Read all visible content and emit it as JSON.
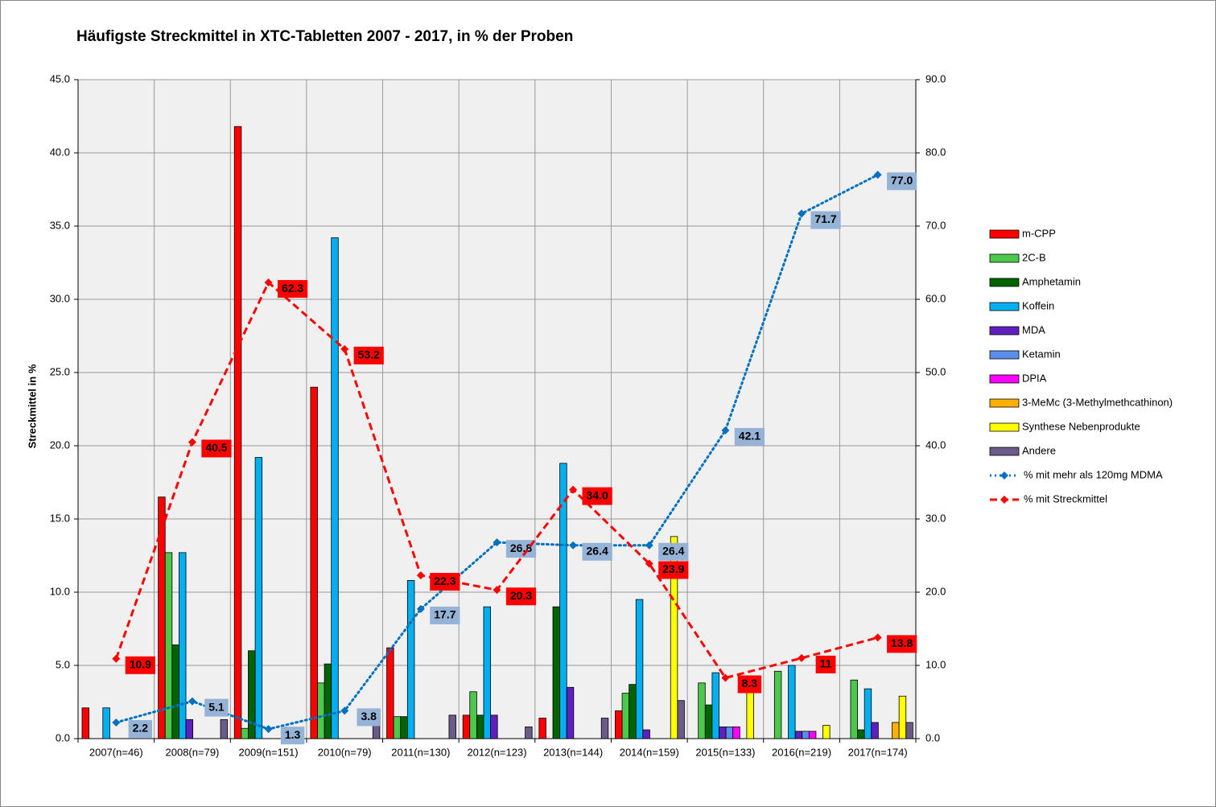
{
  "chart_data": {
    "type": "bar",
    "title": "Häufigste Streckmittel in XTC-Tabletten 2007 - 2017, in % der Proben",
    "y_label": "Streckmittel in %",
    "categories": [
      "2007(n=46)",
      "2008(n=79)",
      "2009(n=151)",
      "2010(n=79)",
      "2011(n=130)",
      "2012(n=123)",
      "2013(n=144)",
      "2014(n=159)",
      "2015(n=133)",
      "2016(n=219)",
      "2017(n=174)"
    ],
    "ylim": [
      0,
      45
    ],
    "yticks": [
      {
        "value": 0,
        "label": "0.0"
      },
      {
        "value": 5,
        "label": "5.0"
      },
      {
        "value": 10,
        "label": "10.0"
      },
      {
        "value": 15,
        "label": "15.0"
      },
      {
        "value": 20,
        "label": "20.0"
      },
      {
        "value": 25,
        "label": "25.0"
      },
      {
        "value": 30,
        "label": "30.0"
      },
      {
        "value": 35,
        "label": "35.0"
      },
      {
        "value": 40,
        "label": "40.0"
      },
      {
        "value": 45,
        "label": "45.0"
      }
    ],
    "y2lim": [
      0,
      90
    ],
    "y2ticks": [
      {
        "value": 0,
        "label": "0.0"
      },
      {
        "value": 10,
        "label": "10.0"
      },
      {
        "value": 20,
        "label": "20.0"
      },
      {
        "value": 30,
        "label": "30.0"
      },
      {
        "value": 40,
        "label": "40.0"
      },
      {
        "value": 50,
        "label": "50.0"
      },
      {
        "value": 60,
        "label": "60.0"
      },
      {
        "value": 70,
        "label": "70.0"
      },
      {
        "value": 80,
        "label": "80.0"
      },
      {
        "value": 90,
        "label": "90.0"
      }
    ],
    "grid": true,
    "legend": "right",
    "series": [
      {
        "name": "m-CPP",
        "color": "#ff0000",
        "values": [
          2.1,
          16.5,
          41.8,
          24.0,
          6.2,
          1.6,
          1.4,
          1.9,
          null,
          null,
          null
        ]
      },
      {
        "name": "2C-B",
        "color": "#4cc84c",
        "values": [
          null,
          12.7,
          0.7,
          3.8,
          1.5,
          3.2,
          null,
          3.1,
          3.8,
          4.6,
          4.0
        ]
      },
      {
        "name": "Amphetamin",
        "color": "#006400",
        "values": [
          null,
          6.4,
          6.0,
          5.1,
          1.5,
          1.6,
          9.0,
          3.7,
          2.3,
          null,
          0.6
        ]
      },
      {
        "name": "Koffein",
        "color": "#00b0f0",
        "values": [
          2.1,
          12.7,
          19.2,
          34.2,
          10.8,
          9.0,
          18.8,
          9.5,
          4.5,
          5.0,
          3.4
        ]
      },
      {
        "name": "MDA",
        "color": "#6020c0",
        "values": [
          null,
          1.3,
          null,
          null,
          null,
          1.6,
          3.5,
          0.6,
          0.8,
          0.5,
          1.1
        ]
      },
      {
        "name": "Ketamin",
        "color": "#5a8ee8",
        "values": [
          null,
          null,
          null,
          null,
          null,
          null,
          null,
          null,
          0.8,
          0.5,
          null
        ]
      },
      {
        "name": "DPIA",
        "color": "#ff00ff",
        "values": [
          null,
          null,
          null,
          null,
          null,
          null,
          null,
          null,
          0.8,
          0.5,
          null
        ]
      },
      {
        "name": "3-MeMc (3-Methylmethcathinon)",
        "color": "#ffb000",
        "values": [
          null,
          null,
          null,
          null,
          null,
          null,
          null,
          null,
          null,
          null,
          1.1
        ]
      },
      {
        "name": "Synthese Nebenprodukte",
        "color": "#ffff00",
        "values": [
          null,
          null,
          null,
          null,
          null,
          null,
          null,
          13.8,
          3.8,
          0.9,
          2.9
        ]
      },
      {
        "name": "Andere",
        "color": "#6b5b8a",
        "values": [
          null,
          1.3,
          null,
          1.3,
          1.6,
          0.8,
          1.4,
          2.6,
          null,
          null,
          1.1
        ]
      },
      {
        "name": "% mit mehr als 120mg MDMA",
        "color": "#0070c0",
        "type": "line",
        "style": "dotted",
        "axis": "y2",
        "label_fill": "#95b3d7",
        "values": [
          2.2,
          5.1,
          1.3,
          3.8,
          17.7,
          26.8,
          26.4,
          26.4,
          42.1,
          71.7,
          77.0
        ],
        "value_labels": [
          "2.2",
          "5.1",
          "1.3",
          "3.8",
          "17.7",
          "26.8",
          "26.4",
          "26.4",
          "42.1",
          "71.7",
          "77.0"
        ]
      },
      {
        "name": "% mit Streckmittel",
        "color": "#ff0000",
        "type": "line",
        "style": "dashed",
        "axis": "y2",
        "label_fill": "#ff0000",
        "values": [
          10.9,
          40.5,
          62.3,
          53.2,
          22.3,
          20.3,
          34.0,
          23.9,
          8.3,
          11,
          13.8
        ],
        "value_labels": [
          "10.9",
          "40.5",
          "62.3",
          "53.2",
          "22.3",
          "20.3",
          "34.0",
          "23.9",
          "8.3",
          "11",
          "13.8"
        ]
      }
    ]
  }
}
